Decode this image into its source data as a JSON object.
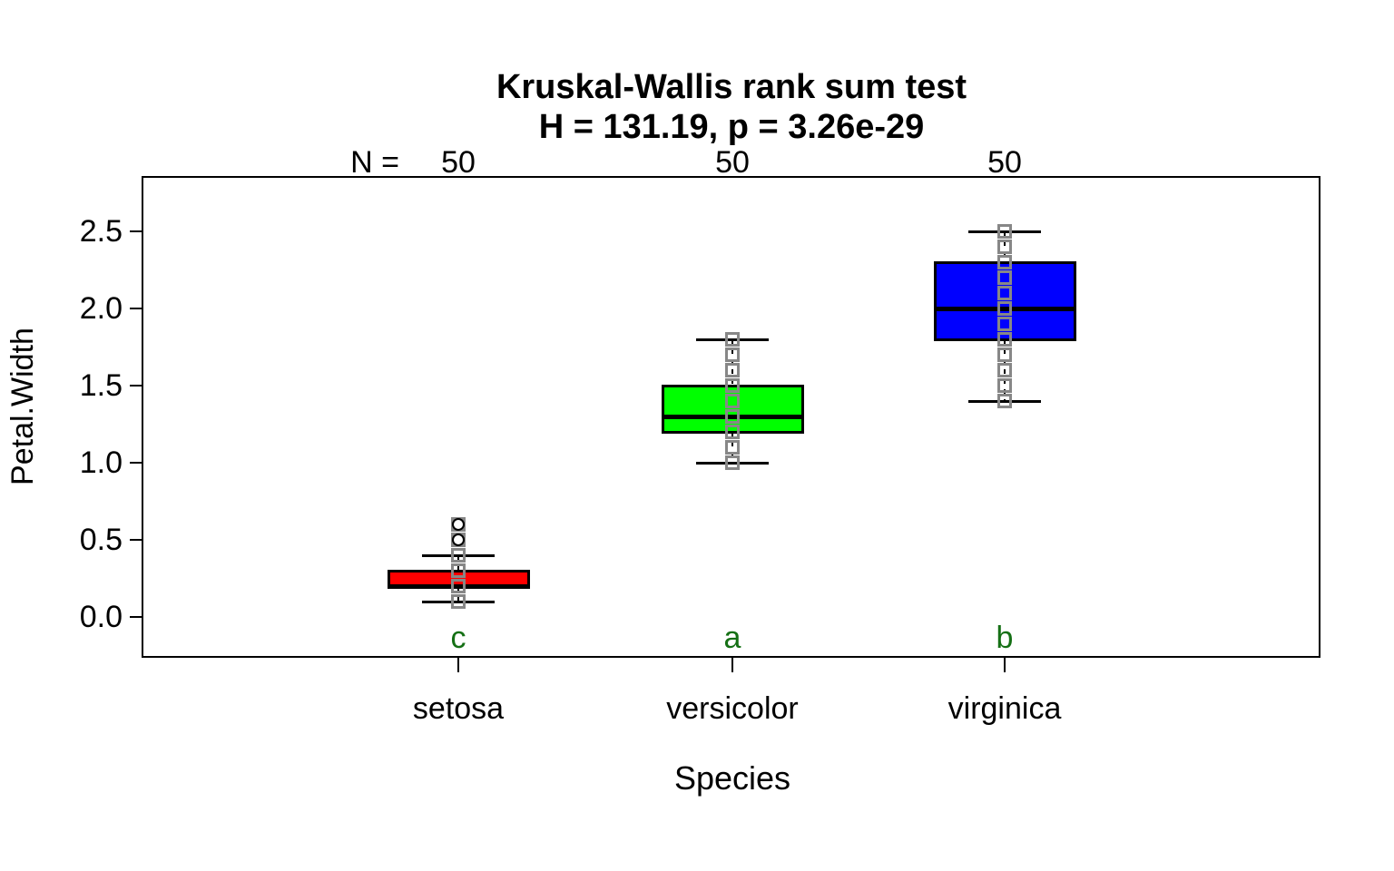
{
  "chart_data": {
    "type": "boxplot",
    "title": "Kruskal-Wallis rank sum test",
    "subtitle": "H = 131.19, p = 3.26e-29",
    "xlabel": "Species",
    "ylabel": "Petal.Width",
    "sample_size_prefix": "N =",
    "grid": false,
    "legend": "none",
    "point_marker": "open-square",
    "outlier_marker": "open-circle",
    "colors": {
      "point_gray": "#878787",
      "letter_green": "#157015",
      "axis_black": "#000000",
      "background": "#ffffff"
    },
    "y_axis": {
      "tick_labels": [
        "0.0",
        "0.5",
        "1.0",
        "1.5",
        "2.0",
        "2.5"
      ],
      "tick_values": [
        0.0,
        0.5,
        1.0,
        1.5,
        2.0,
        2.5
      ],
      "ylim": [
        -0.26,
        2.85
      ]
    },
    "x_axis": {
      "categories": [
        "setosa",
        "versicolor",
        "virginica"
      ]
    },
    "groups": [
      {
        "category": "setosa",
        "n": "50",
        "letter": "c",
        "color": "#ff0000",
        "stats": {
          "whisker_low": 0.1,
          "q1": 0.2,
          "median": 0.2,
          "q3": 0.3,
          "whisker_high": 0.4
        },
        "outliers": [
          0.5,
          0.6
        ],
        "points": [
          0.1,
          0.2,
          0.3,
          0.4,
          0.5,
          0.6
        ]
      },
      {
        "category": "versicolor",
        "n": "50",
        "letter": "a",
        "color": "#00ff00",
        "stats": {
          "whisker_low": 1.0,
          "q1": 1.2,
          "median": 1.3,
          "q3": 1.5,
          "whisker_high": 1.8
        },
        "outliers": [],
        "points": [
          1.0,
          1.1,
          1.2,
          1.3,
          1.4,
          1.5,
          1.6,
          1.7,
          1.8
        ]
      },
      {
        "category": "virginica",
        "n": "50",
        "letter": "b",
        "color": "#0000ff",
        "stats": {
          "whisker_low": 1.4,
          "q1": 1.8,
          "median": 2.0,
          "q3": 2.3,
          "whisker_high": 2.5
        },
        "outliers": [],
        "points": [
          1.4,
          1.5,
          1.6,
          1.7,
          1.8,
          1.9,
          2.0,
          2.1,
          2.2,
          2.3,
          2.4,
          2.5
        ]
      }
    ]
  }
}
